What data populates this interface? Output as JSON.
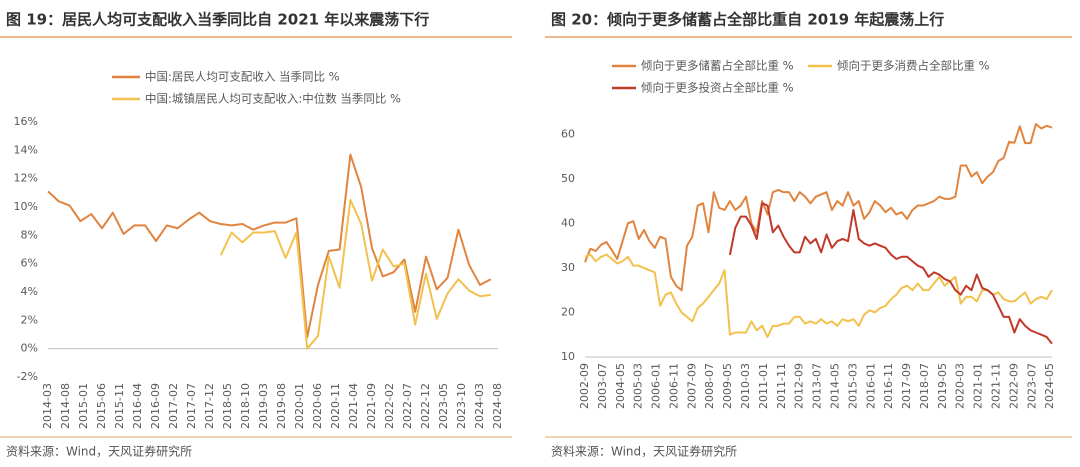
{
  "chart_data": [
    {
      "type": "line",
      "title": "图 19：居民人均可支配收入当季同比自 2021 年以来震荡下行",
      "source": "资料来源：Wind，天风证券研究所",
      "x": [
        "2014-03",
        "2014-06",
        "2014-09",
        "2014-12",
        "2015-03",
        "2015-06",
        "2015-09",
        "2015-12",
        "2016-03",
        "2016-06",
        "2016-09",
        "2016-12",
        "2017-03",
        "2017-06",
        "2017-09",
        "2017-12",
        "2018-03",
        "2018-06",
        "2018-09",
        "2018-12",
        "2019-03",
        "2019-06",
        "2019-09",
        "2019-12",
        "2020-03",
        "2020-06",
        "2020-09",
        "2020-12",
        "2021-03",
        "2021-06",
        "2021-09",
        "2021-12",
        "2022-03",
        "2022-06",
        "2022-09",
        "2022-12",
        "2023-03",
        "2023-06",
        "2023-09",
        "2023-12",
        "2024-03",
        "2024-06"
      ],
      "xlim": [
        "2014-03",
        "2024-08"
      ],
      "xticks": [
        "2014-03",
        "2014-08",
        "2015-01",
        "2015-06",
        "2015-11",
        "2016-04",
        "2016-09",
        "2017-02",
        "2017-07",
        "2017-12",
        "2018-05",
        "2018-10",
        "2019-03",
        "2019-08",
        "2020-01",
        "2020-06",
        "2020-11",
        "2021-04",
        "2021-09",
        "2022-02",
        "2022-07",
        "2022-12",
        "2023-05",
        "2023-10",
        "2024-03",
        "2024-08"
      ],
      "ylim": [
        -2,
        16
      ],
      "yticks": [
        {
          "value": -2,
          "label": "-2%"
        },
        {
          "value": 0,
          "label": "0%"
        },
        {
          "value": 2,
          "label": "2%"
        },
        {
          "value": 4,
          "label": "4%"
        },
        {
          "value": 6,
          "label": "6%"
        },
        {
          "value": 8,
          "label": "8%"
        },
        {
          "value": 10,
          "label": "10%"
        },
        {
          "value": 12,
          "label": "12%"
        },
        {
          "value": 14,
          "label": "14%"
        },
        {
          "value": 16,
          "label": "16%"
        }
      ],
      "grid": false,
      "legend": "top",
      "series": [
        {
          "name": "中国:居民人均可支配收入 当季同比 %",
          "color": "#E0843F",
          "values": [
            11.1,
            10.4,
            10.1,
            9.0,
            9.5,
            8.5,
            9.6,
            8.1,
            8.7,
            8.7,
            7.6,
            8.7,
            8.5,
            9.1,
            9.6,
            9.0,
            8.8,
            8.7,
            8.8,
            8.4,
            8.7,
            8.9,
            8.9,
            9.2,
            0.8,
            4.5,
            6.9,
            7.0,
            13.7,
            11.4,
            7.1,
            5.1,
            5.4,
            6.3,
            2.6,
            6.5,
            4.2,
            5.0,
            8.4,
            5.9,
            4.5,
            4.9
          ]
        },
        {
          "name": "中国:城镇居民人均可支配收入:中位数 当季同比 %",
          "color": "#F2C14E",
          "values": [
            null,
            null,
            null,
            null,
            null,
            null,
            null,
            null,
            null,
            null,
            null,
            null,
            null,
            null,
            null,
            null,
            6.6,
            8.2,
            7.5,
            8.2,
            8.2,
            8.3,
            6.4,
            8.2,
            0.0,
            0.9,
            6.5,
            4.3,
            10.5,
            8.8,
            4.8,
            7.0,
            5.8,
            6.0,
            1.7,
            5.3,
            2.1,
            3.9,
            4.9,
            4.1,
            3.7,
            3.8
          ]
        }
      ]
    },
    {
      "type": "line",
      "title": "图 20：倾向于更多储蓄占全部比重自 2019 年起震荡上行",
      "source": "资料来源：Wind，天风证券研究所",
      "x": [
        "2002-09",
        "2002-12",
        "2003-03",
        "2003-06",
        "2003-09",
        "2003-12",
        "2004-03",
        "2004-06",
        "2004-09",
        "2004-12",
        "2005-03",
        "2005-06",
        "2005-09",
        "2005-12",
        "2006-03",
        "2006-06",
        "2006-09",
        "2006-12",
        "2007-03",
        "2007-06",
        "2007-09",
        "2007-12",
        "2008-03",
        "2008-06",
        "2008-09",
        "2008-12",
        "2009-03",
        "2009-06",
        "2009-09",
        "2009-12",
        "2010-03",
        "2010-06",
        "2010-09",
        "2010-12",
        "2011-03",
        "2011-06",
        "2011-09",
        "2011-12",
        "2012-03",
        "2012-06",
        "2012-09",
        "2012-12",
        "2013-03",
        "2013-06",
        "2013-09",
        "2013-12",
        "2014-03",
        "2014-06",
        "2014-09",
        "2014-12",
        "2015-03",
        "2015-06",
        "2015-09",
        "2015-12",
        "2016-03",
        "2016-06",
        "2016-09",
        "2016-12",
        "2017-03",
        "2017-06",
        "2017-09",
        "2017-12",
        "2018-03",
        "2018-06",
        "2018-09",
        "2018-12",
        "2019-03",
        "2019-06",
        "2019-09",
        "2019-12",
        "2020-03",
        "2020-06",
        "2020-09",
        "2020-12",
        "2021-03",
        "2021-06",
        "2021-09",
        "2021-12",
        "2022-03",
        "2022-06",
        "2022-09",
        "2022-12",
        "2023-03",
        "2023-06",
        "2023-09",
        "2023-12",
        "2024-03",
        "2024-06"
      ],
      "xlim": [
        "2002-09",
        "2024-06"
      ],
      "xticks": [
        "2002-09",
        "2003-07",
        "2004-05",
        "2005-03",
        "2006-01",
        "2006-11",
        "2007-09",
        "2008-07",
        "2009-05",
        "2010-03",
        "2011-01",
        "2011-11",
        "2012-09",
        "2013-07",
        "2014-05",
        "2015-03",
        "2016-01",
        "2016-11",
        "2017-09",
        "2018-07",
        "2019-05",
        "2020-03",
        "2021-01",
        "2021-11",
        "2022-09",
        "2023-07",
        "2024-05"
      ],
      "ylim": [
        10,
        65
      ],
      "yticks": [
        10,
        20,
        30,
        40,
        50,
        60
      ],
      "grid": false,
      "legend": "top",
      "series": [
        {
          "name": "倾向于更多储蓄占全部比重 %",
          "color": "#E0843F",
          "values": [
            31.3,
            34.3,
            33.8,
            35.2,
            35.8,
            34.0,
            32.0,
            36.0,
            40.0,
            40.5,
            36.5,
            38.5,
            36.0,
            34.5,
            37.0,
            36.5,
            28.0,
            26.0,
            25.0,
            35.0,
            37.0,
            44.0,
            44.5,
            38.0,
            47.0,
            43.5,
            43.0,
            45.0,
            43.0,
            44.0,
            46.0,
            40.0,
            38.0,
            45.0,
            42.0,
            47.0,
            47.5,
            47.0,
            47.0,
            45.0,
            47.0,
            46.0,
            44.5,
            46.0,
            46.5,
            47.0,
            43.0,
            45.0,
            44.0,
            47.0,
            44.0,
            45.0,
            41.0,
            42.5,
            45.0,
            44.0,
            42.5,
            43.5,
            42.0,
            42.5,
            41.0,
            43.0,
            44.0,
            44.0,
            44.5,
            45.0,
            46.0,
            45.5,
            45.5,
            46.0,
            53.0,
            53.0,
            50.5,
            51.5,
            49.0,
            50.5,
            51.5,
            54.0,
            54.7,
            58.3,
            58.1,
            61.8,
            58.0,
            58.0,
            62.3,
            61.3,
            61.9,
            61.5
          ]
        },
        {
          "name": "倾向于更多消费占全部比重 %",
          "color": "#F2C14E",
          "values": [
            32.5,
            33.0,
            31.5,
            32.5,
            33.0,
            32.0,
            31.0,
            31.5,
            32.5,
            30.5,
            30.5,
            30.0,
            29.5,
            29.0,
            21.5,
            24.0,
            24.5,
            22.0,
            20.0,
            19.0,
            18.0,
            21.0,
            22.0,
            23.5,
            25.0,
            26.5,
            29.5,
            15.0,
            15.5,
            15.5,
            15.5,
            18.0,
            16.0,
            17.0,
            14.5,
            17.0,
            17.0,
            17.5,
            17.5,
            19.0,
            19.0,
            17.5,
            18.0,
            17.5,
            18.5,
            17.5,
            18.0,
            17.0,
            18.5,
            18.0,
            18.5,
            17.0,
            19.5,
            20.5,
            20.0,
            21.0,
            21.5,
            23.0,
            24.0,
            25.5,
            26.0,
            25.0,
            26.5,
            25.0,
            25.0,
            26.5,
            28.0,
            26.0,
            27.0,
            28.0,
            22.0,
            23.5,
            23.5,
            22.5,
            25.0,
            25.0,
            24.0,
            24.5,
            23.0,
            22.5,
            22.5,
            23.5,
            24.5,
            22.0,
            23.0,
            23.5,
            23.0,
            25.0
          ]
        },
        {
          "name": "倾向于更多投资占全部比重 %",
          "color": "#C0392B",
          "values": [
            null,
            null,
            null,
            null,
            null,
            null,
            null,
            null,
            null,
            null,
            null,
            null,
            null,
            null,
            null,
            null,
            null,
            null,
            null,
            null,
            null,
            null,
            null,
            null,
            null,
            null,
            null,
            32.9,
            39.0,
            41.5,
            41.5,
            39.5,
            36.5,
            44.5,
            44.0,
            38.0,
            39.5,
            37.0,
            35.0,
            33.5,
            33.5,
            37.0,
            35.5,
            36.5,
            33.5,
            37.5,
            34.5,
            36.0,
            36.5,
            36.0,
            43.0,
            36.5,
            35.5,
            35.0,
            35.5,
            35.0,
            34.5,
            33.0,
            32.0,
            32.5,
            32.5,
            31.5,
            30.5,
            30.0,
            28.0,
            29.0,
            28.5,
            27.5,
            27.0,
            25.0,
            24.0,
            26.0,
            25.0,
            28.5,
            25.5,
            25.0,
            24.0,
            21.5,
            19.0,
            19.0,
            15.5,
            18.5,
            17.0,
            16.0,
            15.5,
            15.0,
            14.5,
            13.0
          ]
        }
      ]
    }
  ]
}
